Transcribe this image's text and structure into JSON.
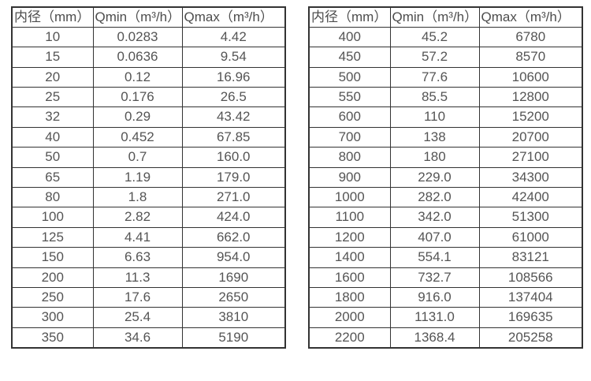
{
  "colors": {
    "background": "#ffffff",
    "border": "#333333",
    "header_text": "#4d4d4d",
    "cell_text": "#555555"
  },
  "columns": [
    "内径（mm）",
    "Qmin（m³/h）",
    "Qmax（m³/h）"
  ],
  "left_table": {
    "rows": [
      [
        "10",
        "0.0283",
        "4.42"
      ],
      [
        "15",
        "0.0636",
        "9.54"
      ],
      [
        "20",
        "0.12",
        "16.96"
      ],
      [
        "25",
        "0.176",
        "26.5"
      ],
      [
        "32",
        "0.29",
        "43.42"
      ],
      [
        "40",
        "0.452",
        "67.85"
      ],
      [
        "50",
        "0.7",
        "160.0"
      ],
      [
        "65",
        "1.19",
        "179.0"
      ],
      [
        "80",
        "1.8",
        "271.0"
      ],
      [
        "100",
        "2.82",
        "424.0"
      ],
      [
        "125",
        "4.41",
        "662.0"
      ],
      [
        "150",
        "6.63",
        "954.0"
      ],
      [
        "200",
        "11.3",
        "1690"
      ],
      [
        "250",
        "17.6",
        "2650"
      ],
      [
        "300",
        "25.4",
        "3810"
      ],
      [
        "350",
        "34.6",
        "5190"
      ]
    ]
  },
  "right_table": {
    "rows": [
      [
        "400",
        "45.2",
        "6780"
      ],
      [
        "450",
        "57.2",
        "8570"
      ],
      [
        "500",
        "77.6",
        "10600"
      ],
      [
        "550",
        "85.5",
        "12800"
      ],
      [
        "600",
        "110",
        "15200"
      ],
      [
        "700",
        "138",
        "20700"
      ],
      [
        "800",
        "180",
        "27100"
      ],
      [
        "900",
        "229.0",
        "34300"
      ],
      [
        "1000",
        "282.0",
        "42400"
      ],
      [
        "1100",
        "342.0",
        "51300"
      ],
      [
        "1200",
        "407.0",
        "61000"
      ],
      [
        "1400",
        "554.1",
        "83121"
      ],
      [
        "1600",
        "732.7",
        "108566"
      ],
      [
        "1800",
        "916.0",
        "137404"
      ],
      [
        "2000",
        "1131.0",
        "169635"
      ],
      [
        "2200",
        "1368.4",
        "205258"
      ]
    ]
  }
}
